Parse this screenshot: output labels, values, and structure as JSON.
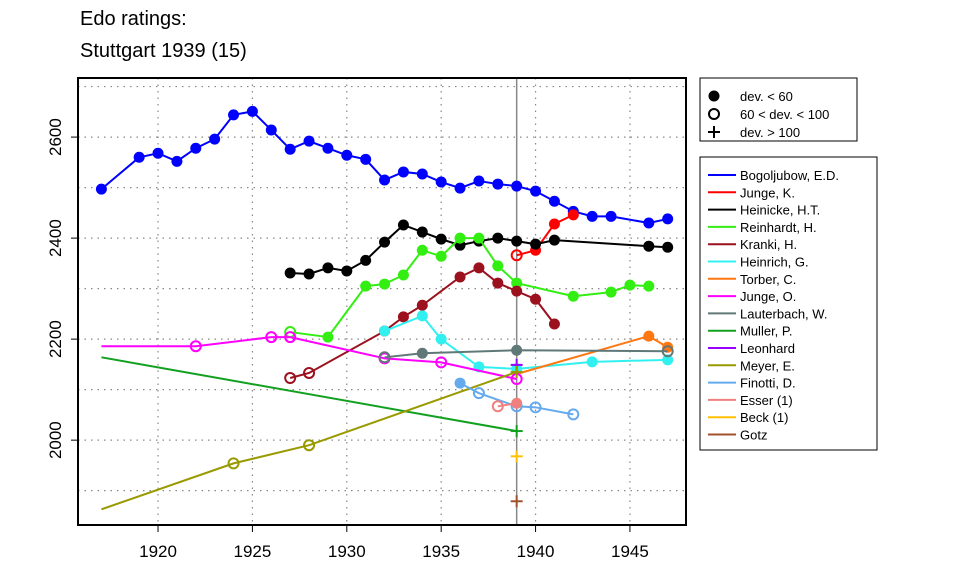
{
  "chart_data": {
    "type": "line",
    "title": "Edo ratings:",
    "subtitle": "Stuttgart 1939 (15)",
    "xlabel": "",
    "ylabel": "",
    "xlim": [
      1915.76,
      1947.97
    ],
    "ylim": [
      1832,
      2717
    ],
    "xticks": [
      1920,
      1925,
      1930,
      1935,
      1940,
      1945
    ],
    "yticks": [
      2000,
      2200,
      2400,
      2600
    ],
    "grid": true,
    "reference_year": 1939,
    "marker_legend": [
      {
        "type": "filled",
        "label": "dev. < 60"
      },
      {
        "type": "open",
        "label": "60 < dev. < 100"
      },
      {
        "type": "plus",
        "label": "dev. > 100"
      }
    ],
    "legend_placement": "right",
    "series": [
      {
        "name": "Bogoljubow, E.D.",
        "color": "#0000ff",
        "points": [
          [
            1917,
            2497,
            "f"
          ],
          [
            1919,
            2560,
            "f"
          ],
          [
            1920,
            2568,
            "f"
          ],
          [
            1921,
            2552,
            "f"
          ],
          [
            1922,
            2578,
            "f"
          ],
          [
            1923,
            2596,
            "f"
          ],
          [
            1924,
            2644,
            "f"
          ],
          [
            1925,
            2651,
            "f"
          ],
          [
            1926,
            2614,
            "f"
          ],
          [
            1927,
            2576,
            "f"
          ],
          [
            1928,
            2592,
            "f"
          ],
          [
            1929,
            2578,
            "f"
          ],
          [
            1930,
            2564,
            "f"
          ],
          [
            1931,
            2556,
            "f"
          ],
          [
            1932,
            2515,
            "f"
          ],
          [
            1933,
            2531,
            "f"
          ],
          [
            1934,
            2527,
            "f"
          ],
          [
            1935,
            2511,
            "f"
          ],
          [
            1936,
            2499,
            "f"
          ],
          [
            1937,
            2513,
            "f"
          ],
          [
            1938,
            2507,
            "f"
          ],
          [
            1939,
            2503,
            "f"
          ],
          [
            1940,
            2493,
            "f"
          ],
          [
            1941,
            2473,
            "f"
          ],
          [
            1942,
            2453,
            "f"
          ],
          [
            1943,
            2443,
            "f"
          ],
          [
            1944,
            2443,
            "f"
          ],
          [
            1946,
            2430,
            "f"
          ],
          [
            1947,
            2438,
            "f"
          ]
        ]
      },
      {
        "name": "Junge, K.",
        "color": "#ff0000",
        "points": [
          [
            1939,
            2366,
            "o"
          ],
          [
            1940,
            2376,
            "f"
          ],
          [
            1941,
            2428,
            "f"
          ],
          [
            1942,
            2446,
            "f"
          ]
        ]
      },
      {
        "name": "Heinicke, H.T.",
        "color": "#000000",
        "points": [
          [
            1927,
            2331,
            "f"
          ],
          [
            1928,
            2329,
            "f"
          ],
          [
            1929,
            2341,
            "f"
          ],
          [
            1930,
            2335,
            "f"
          ],
          [
            1931,
            2356,
            "f"
          ],
          [
            1932,
            2392,
            "f"
          ],
          [
            1933,
            2426,
            "f"
          ],
          [
            1934,
            2412,
            "f"
          ],
          [
            1935,
            2398,
            "f"
          ],
          [
            1936,
            2386,
            "f"
          ],
          [
            1937,
            2394,
            "f"
          ],
          [
            1938,
            2400,
            "f"
          ],
          [
            1939,
            2394,
            "f"
          ],
          [
            1940,
            2388,
            "f"
          ],
          [
            1941,
            2396,
            "f"
          ],
          [
            1946,
            2384,
            "f"
          ],
          [
            1947,
            2382,
            "f"
          ]
        ]
      },
      {
        "name": "Reinhardt, H.",
        "color": "#33ee11",
        "points": [
          [
            1927,
            2214,
            "o"
          ],
          [
            1929,
            2204,
            "f"
          ],
          [
            1931,
            2305,
            "f"
          ],
          [
            1932,
            2309,
            "f"
          ],
          [
            1933,
            2327,
            "f"
          ],
          [
            1934,
            2376,
            "f"
          ],
          [
            1935,
            2364,
            "f"
          ],
          [
            1936,
            2400,
            "f"
          ],
          [
            1937,
            2400,
            "f"
          ],
          [
            1938,
            2345,
            "f"
          ],
          [
            1939,
            2311,
            "f"
          ],
          [
            1942,
            2285,
            "f"
          ],
          [
            1944,
            2293,
            "f"
          ],
          [
            1945,
            2307,
            "f"
          ],
          [
            1946,
            2305,
            "f"
          ]
        ]
      },
      {
        "name": "Kranki, H.",
        "color": "#9b111e",
        "points": [
          [
            1927,
            2123,
            "o"
          ],
          [
            1928,
            2133,
            "o"
          ],
          [
            1932,
            2216,
            "f"
          ],
          [
            1933,
            2244,
            "f"
          ],
          [
            1934,
            2267,
            "f"
          ],
          [
            1936,
            2323,
            "f"
          ],
          [
            1937,
            2341,
            "f"
          ],
          [
            1938,
            2311,
            "f"
          ],
          [
            1939,
            2295,
            "f"
          ],
          [
            1940,
            2279,
            "f"
          ],
          [
            1941,
            2230,
            "f"
          ]
        ]
      },
      {
        "name": "Heinrich, G.",
        "color": "#33f0f0",
        "points": [
          [
            1932,
            2216,
            "f"
          ],
          [
            1934,
            2246,
            "f"
          ],
          [
            1935,
            2200,
            "f"
          ],
          [
            1937,
            2145,
            "f"
          ],
          [
            1939,
            2141,
            "f"
          ],
          [
            1943,
            2155,
            "f"
          ],
          [
            1947,
            2159,
            "f"
          ]
        ]
      },
      {
        "name": "Torber, C.",
        "color": "#ff7711",
        "points": [
          [
            1939,
            2131,
            "n"
          ],
          [
            1946,
            2206,
            "f"
          ],
          [
            1947,
            2184,
            "f"
          ]
        ]
      },
      {
        "name": "Junge, O.",
        "color": "#ff00ff",
        "points": [
          [
            1917,
            2186,
            "n"
          ],
          [
            1922,
            2186,
            "o"
          ],
          [
            1926,
            2204,
            "o"
          ],
          [
            1927,
            2204,
            "o"
          ],
          [
            1932,
            2162,
            "o"
          ],
          [
            1935,
            2154,
            "o"
          ],
          [
            1939,
            2121,
            "o"
          ]
        ]
      },
      {
        "name": "Lauterbach, W.",
        "color": "#607878",
        "points": [
          [
            1932,
            2164,
            "o"
          ],
          [
            1934,
            2172,
            "f"
          ],
          [
            1939,
            2178,
            "f"
          ],
          [
            1947,
            2176,
            "o"
          ]
        ]
      },
      {
        "name": "Muller, P.",
        "color": "#11a020",
        "points": [
          [
            1917,
            2164,
            "n"
          ],
          [
            1939,
            2018,
            "p"
          ]
        ]
      },
      {
        "name": "Leonhard",
        "color": "#9900ff",
        "points": [
          [
            1939,
            2149,
            "p"
          ]
        ]
      },
      {
        "name": "Meyer, E.",
        "color": "#999900",
        "points": [
          [
            1917,
            1863,
            "n"
          ],
          [
            1924,
            1954,
            "o"
          ],
          [
            1928,
            1990,
            "o"
          ],
          [
            1939,
            2135,
            "p"
          ]
        ]
      },
      {
        "name": "Finotti, D.",
        "color": "#66aaee",
        "points": [
          [
            1936,
            2113,
            "f"
          ],
          [
            1937,
            2093,
            "o"
          ],
          [
            1939,
            2067,
            "o"
          ],
          [
            1940,
            2065,
            "o"
          ],
          [
            1942,
            2051,
            "o"
          ]
        ]
      },
      {
        "name": "Esser (1)",
        "color": "#f08080",
        "points": [
          [
            1938,
            2067,
            "o"
          ],
          [
            1939,
            2073,
            "f"
          ]
        ]
      },
      {
        "name": "Beck (1)",
        "color": "#ffc000",
        "points": [
          [
            1939,
            1968,
            "p"
          ]
        ]
      },
      {
        "name": "Gotz",
        "color": "#a0522d",
        "points": [
          [
            1939,
            1879,
            "p"
          ]
        ]
      }
    ]
  }
}
